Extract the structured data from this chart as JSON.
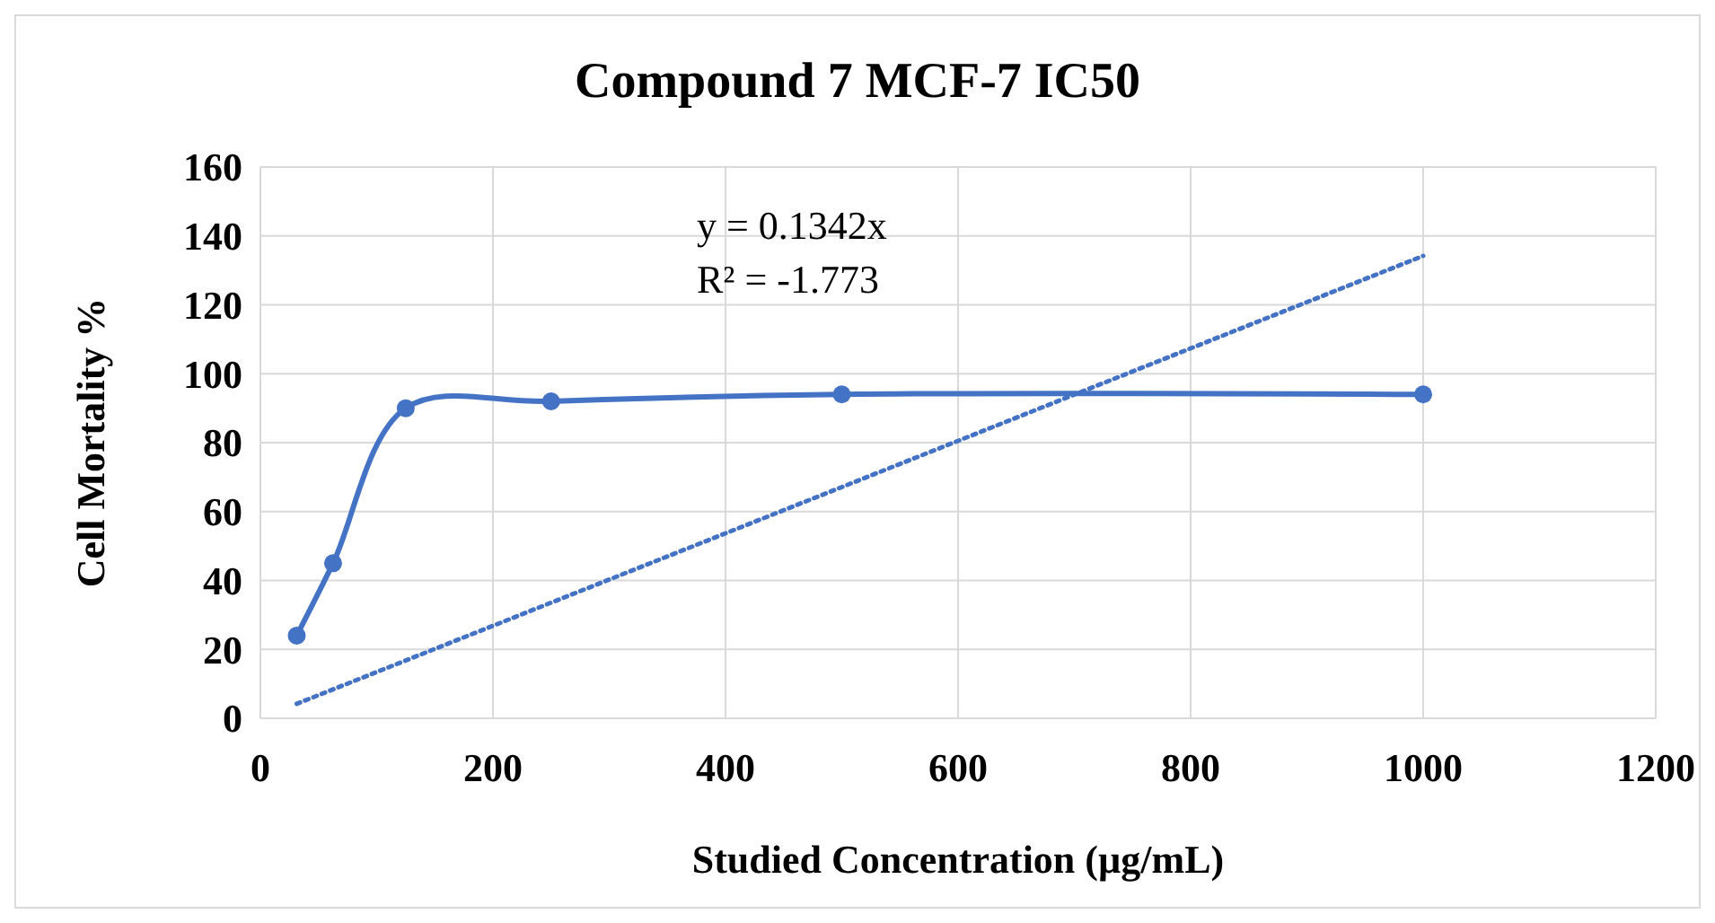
{
  "chart_data": {
    "type": "line",
    "title": "Compound 7 MCF-7 IC50",
    "xlabel": "Studied Concentration  (µg/mL)",
    "ylabel": "Cell Mortality %",
    "x": [
      31.25,
      62.5,
      125,
      250,
      500,
      1000
    ],
    "series": [
      {
        "color": "#4472c4",
        "values": [
          24,
          45,
          90,
          92,
          94,
          94
        ],
        "marker": "circle",
        "line_style": "solid"
      },
      {
        "type": "line",
        "x": [
          31.25,
          1000
        ],
        "color": "#4472c4",
        "values": [
          4.2,
          134.2
        ],
        "marker": "none",
        "line_style": "dotted"
      }
    ],
    "annotations": [
      "y = 0.1342x",
      "R² = -1.773"
    ],
    "xlim": [
      0,
      1200
    ],
    "xticks": [
      0,
      200,
      400,
      600,
      800,
      1000,
      1200
    ],
    "ylim": [
      0,
      160
    ],
    "yticks": [
      0,
      20,
      40,
      60,
      80,
      100,
      120,
      140,
      160
    ],
    "grid": true
  }
}
